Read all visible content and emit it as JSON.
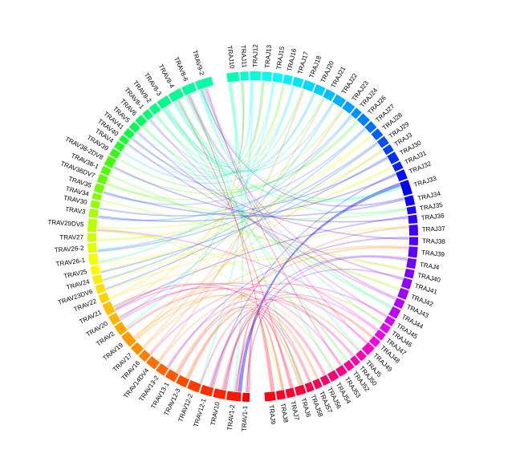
{
  "chart_data": {
    "type": "chord",
    "title": "",
    "gene_groups": {
      "TRAJ": [
        "TRAJ10",
        "TRAJ11",
        "TRAJ12",
        "TRAJ13",
        "TRAJ15",
        "TRAJ16",
        "TRAJ17",
        "TRAJ18",
        "TRAJ20",
        "TRAJ21",
        "TRAJ22",
        "TRAJ23",
        "TRAJ24",
        "TRAJ26",
        "TRAJ27",
        "TRAJ28",
        "TRAJ29",
        "TRAJ3",
        "TRAJ30",
        "TRAJ31",
        "TRAJ32",
        "TRAJ33",
        "TRAJ34",
        "TRAJ35",
        "TRAJ36",
        "TRAJ37",
        "TRAJ38",
        "TRAJ39",
        "TRAJ4",
        "TRAJ40",
        "TRAJ41",
        "TRAJ42",
        "TRAJ43",
        "TRAJ44",
        "TRAJ45",
        "TRAJ46",
        "TRAJ47",
        "TRAJ48",
        "TRAJ49",
        "TRAJ5",
        "TRAJ50",
        "TRAJ52",
        "TRAJ53",
        "TRAJ54",
        "TRAJ56",
        "TRAJ57",
        "TRAJ58",
        "TRAJ6",
        "TRAJ7",
        "TRAJ8",
        "TRAJ9"
      ],
      "TRAV": [
        "TRAV1-1",
        "TRAV1-2",
        "TRAV10",
        "TRAV12-1",
        "TRAV12-2",
        "TRAV12-3",
        "TRAV13-1",
        "TRAV13-2",
        "TRAV14DV4",
        "TRAV16",
        "TRAV17",
        "TRAV19",
        "TRAV2",
        "TRAV20",
        "TRAV21",
        "TRAV22",
        "TRAV23DV6",
        "TRAV24",
        "TRAV25",
        "TRAV26-1",
        "TRAV26-2",
        "TRAV27",
        "TRAV29DV5",
        "TRAV3",
        "TRAV30",
        "TRAV34",
        "TRAV35",
        "TRAV36DV7",
        "TRAV38-1",
        "TRAV38-2DV8",
        "TRAV39",
        "TRAV4",
        "TRAV40",
        "TRAV41",
        "TRAV5",
        "TRAV6",
        "TRAV8-1",
        "TRAV8-2",
        "TRAV8-3",
        "TRAV8-4",
        "TRAV8-6",
        "TRAV9-2"
      ]
    },
    "sectors": [
      {
        "name": "TRAJ10",
        "value": 10,
        "color": "#00ffb2"
      },
      {
        "name": "TRAJ11",
        "value": 7,
        "color": "#00ffcc"
      },
      {
        "name": "TRAJ12",
        "value": 9,
        "color": "#00ffdd"
      },
      {
        "name": "TRAJ13",
        "value": 8,
        "color": "#00ffee"
      },
      {
        "name": "TRAJ15",
        "value": 8,
        "color": "#00fcff"
      },
      {
        "name": "TRAJ16",
        "value": 7,
        "color": "#00f2ff"
      },
      {
        "name": "TRAJ17",
        "value": 8,
        "color": "#00e6ff"
      },
      {
        "name": "TRAJ18",
        "value": 9,
        "color": "#00daff"
      },
      {
        "name": "TRAJ20",
        "value": 8,
        "color": "#00ccff"
      },
      {
        "name": "TRAJ21",
        "value": 8,
        "color": "#00bfff"
      },
      {
        "name": "TRAJ22",
        "value": 9,
        "color": "#00b0ff"
      },
      {
        "name": "TRAJ23",
        "value": 8,
        "color": "#00a0ff"
      },
      {
        "name": "TRAJ24",
        "value": 6,
        "color": "#0090ff"
      },
      {
        "name": "TRAJ26",
        "value": 8,
        "color": "#0080ff"
      },
      {
        "name": "TRAJ27",
        "value": 7,
        "color": "#0070ff"
      },
      {
        "name": "TRAJ28",
        "value": 7,
        "color": "#0060ff"
      },
      {
        "name": "TRAJ29",
        "value": 7,
        "color": "#0050ff"
      },
      {
        "name": "TRAJ3",
        "value": 6,
        "color": "#0040ff"
      },
      {
        "name": "TRAJ30",
        "value": 8,
        "color": "#0030ff"
      },
      {
        "name": "TRAJ31",
        "value": 6,
        "color": "#0020ff"
      },
      {
        "name": "TRAJ32",
        "value": 8,
        "color": "#0010ff"
      },
      {
        "name": "TRAJ33",
        "value": 12,
        "color": "#0000ff"
      },
      {
        "name": "TRAJ34",
        "value": 8,
        "color": "#1000ff"
      },
      {
        "name": "TRAJ35",
        "value": 6,
        "color": "#2000ff"
      },
      {
        "name": "TRAJ36",
        "value": 7,
        "color": "#3000ff"
      },
      {
        "name": "TRAJ37",
        "value": 9,
        "color": "#4000ff"
      },
      {
        "name": "TRAJ38",
        "value": 7,
        "color": "#5000ff"
      },
      {
        "name": "TRAJ39",
        "value": 9,
        "color": "#6000ff"
      },
      {
        "name": "TRAJ4",
        "value": 8,
        "color": "#7000ff"
      },
      {
        "name": "TRAJ40",
        "value": 7,
        "color": "#8000ff"
      },
      {
        "name": "TRAJ41",
        "value": 8,
        "color": "#9000ff"
      },
      {
        "name": "TRAJ42",
        "value": 8,
        "color": "#a000ff"
      },
      {
        "name": "TRAJ43",
        "value": 7,
        "color": "#b000ff"
      },
      {
        "name": "TRAJ44",
        "value": 8,
        "color": "#c000ff"
      },
      {
        "name": "TRAJ45",
        "value": 6,
        "color": "#d000ff"
      },
      {
        "name": "TRAJ46",
        "value": 6,
        "color": "#e000f5"
      },
      {
        "name": "TRAJ47",
        "value": 6,
        "color": "#f000e8"
      },
      {
        "name": "TRAJ48",
        "value": 6,
        "color": "#ff00dd"
      },
      {
        "name": "TRAJ49",
        "value": 8,
        "color": "#ff00c8"
      },
      {
        "name": "TRAJ5",
        "value": 6,
        "color": "#ff00b5"
      },
      {
        "name": "TRAJ50",
        "value": 5,
        "color": "#ff00a2"
      },
      {
        "name": "TRAJ52",
        "value": 6,
        "color": "#ff0090"
      },
      {
        "name": "TRAJ53",
        "value": 7,
        "color": "#ff0080"
      },
      {
        "name": "TRAJ54",
        "value": 7,
        "color": "#ff0070"
      },
      {
        "name": "TRAJ56",
        "value": 6,
        "color": "#ff0062"
      },
      {
        "name": "TRAJ57",
        "value": 6,
        "color": "#ff0055"
      },
      {
        "name": "TRAJ58",
        "value": 6,
        "color": "#ff0048"
      },
      {
        "name": "TRAJ6",
        "value": 8,
        "color": "#ff003b"
      },
      {
        "name": "TRAJ7",
        "value": 7,
        "color": "#ff002e"
      },
      {
        "name": "TRAJ8",
        "value": 7,
        "color": "#ff0022"
      },
      {
        "name": "TRAJ9",
        "value": 9,
        "color": "#ff0015"
      },
      {
        "name": "TRAV1-1",
        "value": 6,
        "color": "#ff0000"
      },
      {
        "name": "TRAV1-2",
        "value": 12,
        "color": "#ff1500"
      },
      {
        "name": "TRAV10",
        "value": 10,
        "color": "#ff2200"
      },
      {
        "name": "TRAV12-1",
        "value": 10,
        "color": "#ff3000"
      },
      {
        "name": "TRAV12-2",
        "value": 10,
        "color": "#ff3d00"
      },
      {
        "name": "TRAV12-3",
        "value": 9,
        "color": "#ff4a00"
      },
      {
        "name": "TRAV13-1",
        "value": 9,
        "color": "#ff5800"
      },
      {
        "name": "TRAV13-2",
        "value": 8,
        "color": "#ff6500"
      },
      {
        "name": "TRAV14DV4",
        "value": 9,
        "color": "#ff7200"
      },
      {
        "name": "TRAV16",
        "value": 7,
        "color": "#ff8000"
      },
      {
        "name": "TRAV17",
        "value": 8,
        "color": "#ff8d00"
      },
      {
        "name": "TRAV19",
        "value": 11,
        "color": "#ff9a00"
      },
      {
        "name": "TRAV2",
        "value": 9,
        "color": "#ffa800"
      },
      {
        "name": "TRAV20",
        "value": 8,
        "color": "#ffb500"
      },
      {
        "name": "TRAV21",
        "value": 10,
        "color": "#ffc200"
      },
      {
        "name": "TRAV22",
        "value": 7,
        "color": "#ffd000"
      },
      {
        "name": "TRAV23DV6",
        "value": 7,
        "color": "#ffdd00"
      },
      {
        "name": "TRAV24",
        "value": 7,
        "color": "#ffea00"
      },
      {
        "name": "TRAV25",
        "value": 7,
        "color": "#fff700"
      },
      {
        "name": "TRAV26-1",
        "value": 9,
        "color": "#f2ff00"
      },
      {
        "name": "TRAV26-2",
        "value": 8,
        "color": "#e0ff00"
      },
      {
        "name": "TRAV27",
        "value": 7,
        "color": "#ccff00"
      },
      {
        "name": "TRAV29DV5",
        "value": 11,
        "color": "#b8ff00"
      },
      {
        "name": "TRAV3",
        "value": 7,
        "color": "#a5ff00"
      },
      {
        "name": "TRAV30",
        "value": 6,
        "color": "#90ff00"
      },
      {
        "name": "TRAV34",
        "value": 5,
        "color": "#80ff00"
      },
      {
        "name": "TRAV35",
        "value": 7,
        "color": "#70ff00"
      },
      {
        "name": "TRAV36DV7",
        "value": 7,
        "color": "#60ff00"
      },
      {
        "name": "TRAV38-1",
        "value": 6,
        "color": "#50ff00"
      },
      {
        "name": "TRAV38-2DV8",
        "value": 8,
        "color": "#40ff00"
      },
      {
        "name": "TRAV39",
        "value": 6,
        "color": "#30ff10"
      },
      {
        "name": "TRAV4",
        "value": 6,
        "color": "#20ff20"
      },
      {
        "name": "TRAV40",
        "value": 5,
        "color": "#10ff30"
      },
      {
        "name": "TRAV41",
        "value": 6,
        "color": "#00ff40"
      },
      {
        "name": "TRAV5",
        "value": 6,
        "color": "#00ff50"
      },
      {
        "name": "TRAV6",
        "value": 7,
        "color": "#00ff60"
      },
      {
        "name": "TRAV8-1",
        "value": 6,
        "color": "#00ff70"
      },
      {
        "name": "TRAV8-2",
        "value": 7,
        "color": "#00ff80"
      },
      {
        "name": "TRAV8-3",
        "value": 10,
        "color": "#00ff88"
      },
      {
        "name": "TRAV8-4",
        "value": 11,
        "color": "#00ff92"
      },
      {
        "name": "TRAV8-6",
        "value": 11,
        "color": "#00ff9c"
      },
      {
        "name": "TRAV9-2",
        "value": 14,
        "color": "#00ffa6"
      }
    ],
    "links": [
      {
        "source": "TRAJ33",
        "target": "TRAV1-2",
        "value": 5
      },
      {
        "source": "TRAJ9",
        "target": "TRAV1-1",
        "value": 4
      },
      {
        "source": "TRAJ10",
        "target": "TRAV9-2",
        "value": 4
      },
      {
        "source": "TRAJ11",
        "target": "TRAV8-6",
        "value": 3
      },
      {
        "source": "TRAJ12",
        "target": "TRAV8-4",
        "value": 3
      },
      {
        "source": "TRAJ13",
        "target": "TRAV8-3",
        "value": 3
      },
      {
        "source": "TRAJ8",
        "target": "TRAV1-2",
        "value": 3
      },
      {
        "source": "TRAJ7",
        "target": "TRAV10",
        "value": 3
      },
      {
        "source": "TRAJ6",
        "target": "TRAV12-1",
        "value": 3
      },
      {
        "source": "TRAJ58",
        "target": "TRAV12-2",
        "value": 2
      },
      {
        "source": "TRAJ57",
        "target": "TRAV12-3",
        "value": 2
      },
      {
        "source": "TRAJ56",
        "target": "TRAV13-1",
        "value": 2
      },
      {
        "source": "TRAJ54",
        "target": "TRAV19",
        "value": 2
      },
      {
        "source": "TRAJ53",
        "target": "TRAV21",
        "value": 2
      },
      {
        "source": "TRAJ52",
        "target": "TRAV29DV5",
        "value": 2
      },
      {
        "source": "TRAJ50",
        "target": "TRAV2",
        "value": 2
      },
      {
        "source": "TRAJ49",
        "target": "TRAV20",
        "value": 2
      },
      {
        "source": "TRAJ48",
        "target": "TRAV14DV4",
        "value": 2
      },
      {
        "source": "TRAJ45",
        "target": "TRAV16",
        "value": 2
      },
      {
        "source": "TRAJ42",
        "target": "TRAV26-1",
        "value": 2
      },
      {
        "source": "TRAJ40",
        "target": "TRAV22",
        "value": 2
      },
      {
        "source": "TRAJ37",
        "target": "TRAV23DV6",
        "value": 2
      },
      {
        "source": "TRAJ39",
        "target": "TRAV17",
        "value": 2
      },
      {
        "source": "TRAJ31",
        "target": "TRAV24",
        "value": 2
      },
      {
        "source": "TRAJ30",
        "target": "TRAV25",
        "value": 2
      },
      {
        "source": "TRAJ29",
        "target": "TRAV26-2",
        "value": 2
      },
      {
        "source": "TRAJ28",
        "target": "TRAV27",
        "value": 2
      },
      {
        "source": "TRAJ27",
        "target": "TRAV3",
        "value": 2
      },
      {
        "source": "TRAJ26",
        "target": "TRAV38-2DV8",
        "value": 2
      },
      {
        "source": "TRAJ24",
        "target": "TRAV35",
        "value": 2
      },
      {
        "source": "TRAJ23",
        "target": "TRAV36DV7",
        "value": 2
      },
      {
        "source": "TRAJ22",
        "target": "TRAV8-3",
        "value": 2
      },
      {
        "source": "TRAJ21",
        "target": "TRAV8-2",
        "value": 2
      },
      {
        "source": "TRAJ20",
        "target": "TRAV8-1",
        "value": 2
      },
      {
        "source": "TRAJ18",
        "target": "TRAV6",
        "value": 2
      },
      {
        "source": "TRAJ17",
        "target": "TRAV5",
        "value": 2
      },
      {
        "source": "TRAJ16",
        "target": "TRAV41",
        "value": 2
      },
      {
        "source": "TRAJ15",
        "target": "TRAV40",
        "value": 2
      },
      {
        "source": "TRAJ34",
        "target": "TRAV9-2",
        "value": 2
      },
      {
        "source": "TRAJ43",
        "target": "TRAV8-6",
        "value": 2
      },
      {
        "source": "TRAJ44",
        "target": "TRAV8-4",
        "value": 2
      },
      {
        "source": "TRAJ41",
        "target": "TRAV1-2",
        "value": 2
      },
      {
        "source": "TRAJ4",
        "target": "TRAV10",
        "value": 2
      },
      {
        "source": "TRAJ32",
        "target": "TRAV12-1",
        "value": 2
      },
      {
        "source": "TRAJ3",
        "target": "TRAV19",
        "value": 2
      },
      {
        "source": "TRAJ36",
        "target": "TRAV21",
        "value": 2
      },
      {
        "source": "TRAJ38",
        "target": "TRAV13-2",
        "value": 2
      },
      {
        "source": "TRAJ47",
        "target": "TRAV29DV5",
        "value": 2
      },
      {
        "source": "TRAJ46",
        "target": "TRAV2",
        "value": 2
      },
      {
        "source": "TRAJ5",
        "target": "TRAV9-2",
        "value": 2
      },
      {
        "source": "TRAJ35",
        "target": "TRAV8-4",
        "value": 2
      },
      {
        "source": "TRAJ9",
        "target": "TRAV8-6",
        "value": 2
      },
      {
        "source": "TRAJ10",
        "target": "TRAV1-2",
        "value": 2
      },
      {
        "source": "TRAJ12",
        "target": "TRAV12-2",
        "value": 2
      },
      {
        "source": "TRAJ33",
        "target": "TRAV9-2",
        "value": 2
      },
      {
        "source": "TRAJ33",
        "target": "TRAV8-3",
        "value": 2
      },
      {
        "source": "TRAJ11",
        "target": "TRAV19",
        "value": 2
      },
      {
        "source": "TRAJ13",
        "target": "TRAV21",
        "value": 2
      },
      {
        "source": "TRAJ6",
        "target": "TRAV8-6",
        "value": 2
      },
      {
        "source": "TRAJ8",
        "target": "TRAV29DV5",
        "value": 2
      },
      {
        "source": "TRAJ7",
        "target": "TRAV8-4",
        "value": 2
      },
      {
        "source": "TRAJ37",
        "target": "TRAV12-3",
        "value": 2
      },
      {
        "source": "TRAJ39",
        "target": "TRAV13-1",
        "value": 2
      },
      {
        "source": "TRAJ22",
        "target": "TRAV20",
        "value": 2
      },
      {
        "source": "TRAJ18",
        "target": "TRAV14DV4",
        "value": 2
      },
      {
        "source": "TRAJ49",
        "target": "TRAV9-2",
        "value": 2
      },
      {
        "source": "TRAJ30",
        "target": "TRAV30",
        "value": 2
      },
      {
        "source": "TRAJ26",
        "target": "TRAV39",
        "value": 2
      },
      {
        "source": "TRAJ20",
        "target": "TRAV4",
        "value": 2
      },
      {
        "source": "TRAJ42",
        "target": "TRAV38-1",
        "value": 2
      },
      {
        "source": "TRAJ40",
        "target": "TRAV34",
        "value": 2
      },
      {
        "source": "TRAJ23",
        "target": "TRAV16",
        "value": 2
      },
      {
        "source": "TRAJ21",
        "target": "TRAV17",
        "value": 2
      },
      {
        "source": "TRAJ15",
        "target": "TRAV2",
        "value": 2
      },
      {
        "source": "TRAJ16",
        "target": "TRAV22",
        "value": 2
      },
      {
        "source": "TRAJ17",
        "target": "TRAV26-1",
        "value": 2
      },
      {
        "source": "TRAJ27",
        "target": "TRAV24",
        "value": 2
      },
      {
        "source": "TRAJ28",
        "target": "TRAV25",
        "value": 2
      },
      {
        "source": "TRAJ29",
        "target": "TRAV23DV6",
        "value": 2
      },
      {
        "source": "TRAJ24",
        "target": "TRAV26-2",
        "value": 2
      },
      {
        "source": "TRAJ31",
        "target": "TRAV27",
        "value": 2
      },
      {
        "source": "TRAJ32",
        "target": "TRAV3",
        "value": 2
      },
      {
        "source": "TRAJ34",
        "target": "TRAV35",
        "value": 2
      },
      {
        "source": "TRAJ35",
        "target": "TRAV36DV7",
        "value": 2
      },
      {
        "source": "TRAJ36",
        "target": "TRAV38-2DV8",
        "value": 2
      },
      {
        "source": "TRAJ38",
        "target": "TRAV41",
        "value": 2
      },
      {
        "source": "TRAJ41",
        "target": "TRAV40",
        "value": 2
      },
      {
        "source": "TRAJ43",
        "target": "TRAV5",
        "value": 2
      },
      {
        "source": "TRAJ44",
        "target": "TRAV6",
        "value": 2
      },
      {
        "source": "TRAJ45",
        "target": "TRAV8-1",
        "value": 2
      },
      {
        "source": "TRAJ46",
        "target": "TRAV8-2",
        "value": 2
      },
      {
        "source": "TRAJ47",
        "target": "TRAV12-1",
        "value": 2
      },
      {
        "source": "TRAJ48",
        "target": "TRAV10",
        "value": 2
      },
      {
        "source": "TRAJ50",
        "target": "TRAV13-2",
        "value": 2
      },
      {
        "source": "TRAJ52",
        "target": "TRAV8-3",
        "value": 2
      },
      {
        "source": "TRAJ53",
        "target": "TRAV9-2",
        "value": 2
      },
      {
        "source": "TRAJ54",
        "target": "TRAV8-4",
        "value": 2
      },
      {
        "source": "TRAJ56",
        "target": "TRAV20",
        "value": 2
      },
      {
        "source": "TRAJ57",
        "target": "TRAV19",
        "value": 2
      },
      {
        "source": "TRAJ58",
        "target": "TRAV21",
        "value": 2
      },
      {
        "source": "TRAJ3",
        "target": "TRAV29DV5",
        "value": 2
      },
      {
        "source": "TRAJ4",
        "target": "TRAV1-1",
        "value": 2
      },
      {
        "source": "TRAJ5",
        "target": "TRAV12-3",
        "value": 2
      },
      {
        "source": "TRAJ6",
        "target": "TRAV13-1",
        "value": 2
      }
    ]
  }
}
